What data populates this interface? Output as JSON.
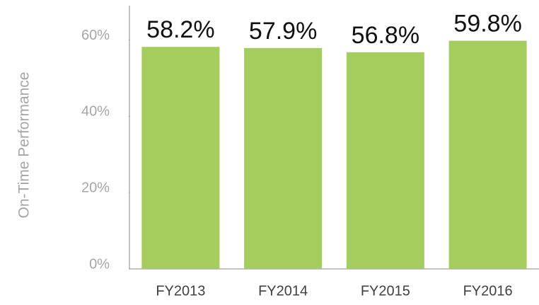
{
  "chart_data": {
    "type": "bar",
    "y_label": "On-Time Performance",
    "categories": [
      "FY2013",
      "FY2014",
      "FY2015",
      "FY2016"
    ],
    "values": [
      58.2,
      57.9,
      56.8,
      59.8
    ],
    "value_labels": [
      "58.2%",
      "57.9%",
      "56.8%",
      "59.8%"
    ],
    "color": "#a5cd5e",
    "ylim": [
      0,
      69
    ],
    "yticks": [
      {
        "value": 0,
        "label": "0%"
      },
      {
        "value": 20,
        "label": "20%"
      },
      {
        "value": 40,
        "label": "40%"
      },
      {
        "value": 60,
        "label": "60%"
      }
    ],
    "grid": false
  }
}
